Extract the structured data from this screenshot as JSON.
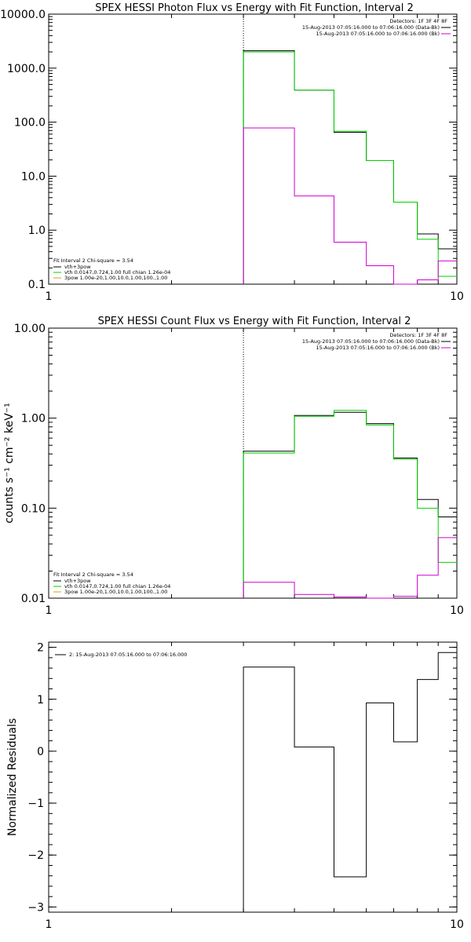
{
  "colors": {
    "black": "#000000",
    "green": "#00d000",
    "magenta": "#d000d0",
    "orange": "#d8a000"
  },
  "chart_data": [
    {
      "type": "line",
      "title": "SPEX HESSI Photon Flux vs Energy with Fit Function, Interval 2",
      "xlabel": "",
      "ylabel": "",
      "xscale": "log",
      "yscale": "log",
      "xlim": [
        1,
        10
      ],
      "ylim": [
        0.1,
        10000
      ],
      "x_tick_labels": [
        "1",
        "10"
      ],
      "y_tick_labels": [
        "0.1",
        "1.0",
        "10.0",
        "100.0",
        "1000.0",
        "10000.0"
      ],
      "vline_x": 3,
      "legend_upper_right": [
        "Detectors: 1F 3F 4F 8F",
        "15-Aug-2013 07:05:16.000 to 07:06:16.000 (Data-Bk)",
        "15-Aug-2013 07:05:16.000 to 07:06:16.000 (Bk)"
      ],
      "legend_lower_left": [
        "Fit Interval 2   Chi-square = 3.54",
        "vth+3pow",
        "vth 0.0147,0.724,1.00  full chian 1.26e-04",
        "3pow 1.00e-20,1.00,10.0,1.00,100.,1.00"
      ],
      "bin_edges": [
        3.0,
        4.0,
        5.0,
        6.0,
        7.0,
        8.0,
        9.0,
        10.0
      ],
      "series": [
        {
          "name": "Data-Bk",
          "color": "black",
          "values": [
            2100,
            390,
            65,
            19.5,
            3.3,
            0.85,
            0.45
          ]
        },
        {
          "name": "vth",
          "color": "green",
          "values": [
            2000,
            390,
            68,
            19.5,
            3.3,
            0.68,
            0.14
          ]
        },
        {
          "name": "Bk",
          "color": "magenta",
          "values": [
            78,
            4.3,
            0.6,
            0.22,
            0.1,
            0.12,
            0.27
          ]
        }
      ]
    },
    {
      "type": "line",
      "title": "SPEX HESSI Count Flux vs Energy with Fit Function, Interval 2",
      "xlabel": "",
      "ylabel": "counts s⁻¹ cm⁻² keV⁻¹",
      "xscale": "log",
      "yscale": "log",
      "xlim": [
        1,
        10
      ],
      "ylim": [
        0.01,
        10
      ],
      "x_tick_labels": [
        "1",
        "10"
      ],
      "y_tick_labels": [
        "0.01",
        "0.10",
        "1.00",
        "10.00"
      ],
      "vline_x": 3,
      "legend_upper_right": [
        "Detectors: 1F 3F 4F 8F",
        "15-Aug-2013 07:05:16.000 to 07:06:16.000 (Data-Bk)",
        "15-Aug-2013 07:05:16.000 to 07:06:16.000 (Bk)"
      ],
      "legend_lower_left": [
        "Fit Interval 2   Chi-square = 3.54",
        "vth+3pow",
        "vth 0.0147,0.724,1.00  full chian 1.26e-04",
        "3pow 1.00e-20,1.00,10.0,1.00,100.,1.00"
      ],
      "bin_edges": [
        3.0,
        4.0,
        5.0,
        6.0,
        7.0,
        8.0,
        9.0,
        10.0
      ],
      "series": [
        {
          "name": "Data-Bk",
          "color": "black",
          "values": [
            0.43,
            1.07,
            1.16,
            0.87,
            0.36,
            0.125,
            0.08
          ]
        },
        {
          "name": "vth",
          "color": "green",
          "values": [
            0.41,
            1.05,
            1.22,
            0.84,
            0.35,
            0.1,
            0.025
          ]
        },
        {
          "name": "Bk",
          "color": "magenta",
          "values": [
            0.015,
            0.011,
            0.0103,
            0.0098,
            0.0105,
            0.018,
            0.047
          ]
        }
      ]
    },
    {
      "type": "line",
      "title": "",
      "xlabel": "",
      "ylabel": "Normalized Residuals",
      "xscale": "log",
      "yscale": "linear",
      "xlim": [
        1,
        10
      ],
      "ylim": [
        -3.1,
        2.1
      ],
      "x_tick_labels": [
        "1",
        "10"
      ],
      "y_ticks": [
        -3,
        -2,
        -1,
        0,
        1,
        2
      ],
      "y_tick_labels": [
        "−3",
        "−2",
        "−1",
        "0",
        "1",
        "2"
      ],
      "legend_upper_left": [
        "2: 15-Aug-2013 07:05:16.000 to 07:06:16.000"
      ],
      "bin_edges": [
        3.0,
        4.0,
        5.0,
        6.0,
        7.0,
        8.0,
        9.0,
        10.0
      ],
      "series": [
        {
          "name": "2: 15-Aug-2013 07:05:16.000 to 07:06:16.000",
          "color": "black",
          "values": [
            1.62,
            0.08,
            -2.42,
            0.93,
            0.18,
            1.38,
            1.9
          ]
        }
      ]
    }
  ]
}
